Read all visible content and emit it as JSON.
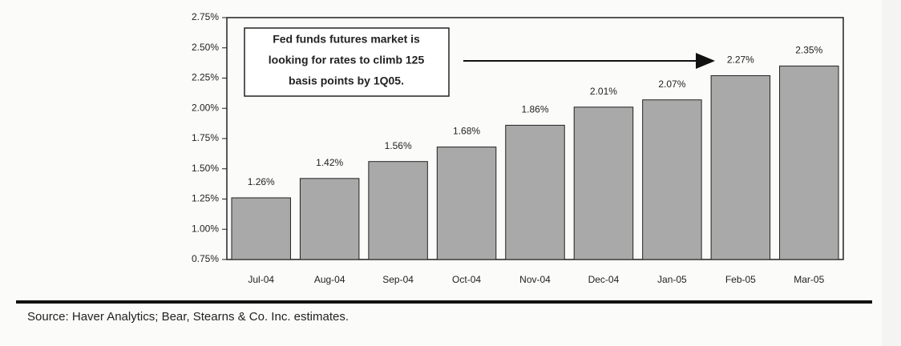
{
  "chart_data": {
    "type": "bar",
    "annotation": [
      "Fed funds futures market is",
      "looking for rates to climb 125",
      "basis points by 1Q05."
    ],
    "source": "Source: Haver Analytics; Bear, Stearns & Co. Inc. estimates.",
    "categories": [
      "Jul-04",
      "Aug-04",
      "Sep-04",
      "Oct-04",
      "Nov-04",
      "Dec-04",
      "Jan-05",
      "Feb-05",
      "Mar-05"
    ],
    "values": [
      1.26,
      1.42,
      1.56,
      1.68,
      1.86,
      2.01,
      2.07,
      2.27,
      2.35
    ],
    "value_labels": [
      "1.26%",
      "1.42%",
      "1.56%",
      "1.68%",
      "1.86%",
      "2.01%",
      "2.07%",
      "2.27%",
      "2.35%"
    ],
    "color": "#a9a9a9",
    "ylim": [
      0.75,
      2.75
    ],
    "yticks": [
      {
        "value": 0.75,
        "label": "0.75%"
      },
      {
        "value": 1.0,
        "label": "1.00%"
      },
      {
        "value": 1.25,
        "label": "1.25%"
      },
      {
        "value": 1.5,
        "label": "1.50%"
      },
      {
        "value": 1.75,
        "label": "1.75%"
      },
      {
        "value": 2.0,
        "label": "2.00%"
      },
      {
        "value": 2.25,
        "label": "2.25%"
      },
      {
        "value": 2.5,
        "label": "2.50%"
      },
      {
        "value": 2.75,
        "label": "2.75%"
      }
    ],
    "grid": false
  }
}
